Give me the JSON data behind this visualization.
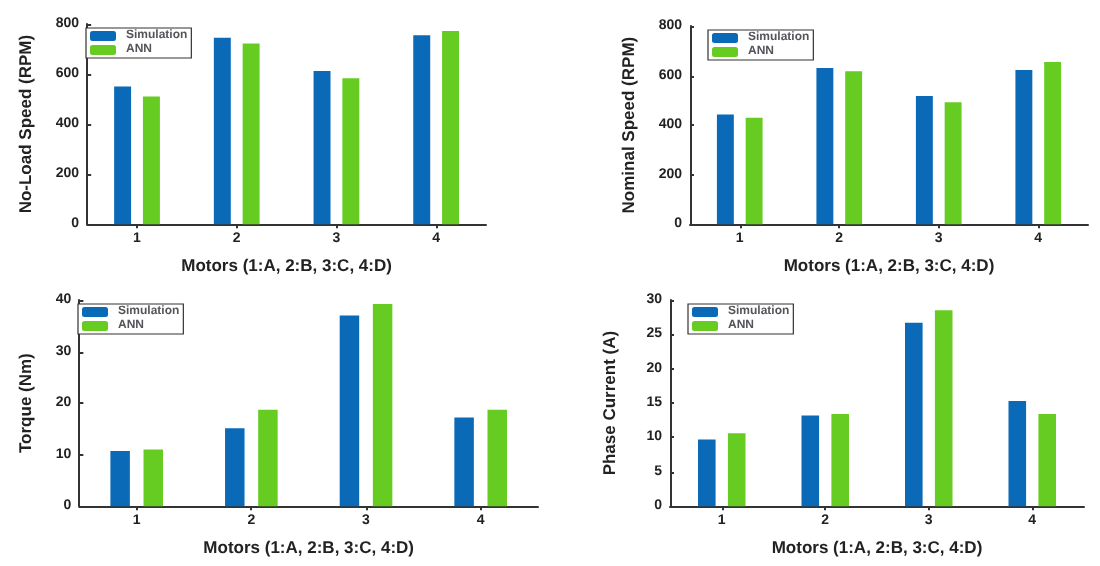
{
  "chart_data": [
    {
      "type": "bar",
      "categories": [
        "1",
        "2",
        "3",
        "4"
      ],
      "xlabel": "Motors (1:A, 2:B, 3:C, 4:D)",
      "ylabel": "No-Load Speed (RPM)",
      "ylim": [
        0,
        800
      ],
      "yticks": [
        0,
        200,
        400,
        600,
        800
      ],
      "legend": "top left",
      "series": [
        {
          "name": "Simulation",
          "color": "#0a6ab8",
          "values": [
            550,
            745,
            612,
            755
          ]
        },
        {
          "name": "ANN",
          "color": "#66cc22",
          "values": [
            510,
            722,
            583,
            772
          ]
        }
      ]
    },
    {
      "type": "bar",
      "categories": [
        "1",
        "2",
        "3",
        "4"
      ],
      "xlabel": "Motors (1:A, 2:B, 3:C, 4:D)",
      "ylabel": "Nominal Speed (RPM)",
      "ylim": [
        0,
        800
      ],
      "yticks": [
        0,
        200,
        400,
        600,
        800
      ],
      "legend": "top left",
      "series": [
        {
          "name": "Simulation",
          "color": "#0a6ab8",
          "values": [
            443,
            630,
            517,
            622
          ]
        },
        {
          "name": "ANN",
          "color": "#66cc22",
          "values": [
            430,
            617,
            492,
            655
          ]
        }
      ]
    },
    {
      "type": "bar",
      "categories": [
        "1",
        "2",
        "3",
        "4"
      ],
      "xlabel": "Motors (1:A, 2:B, 3:C, 4:D)",
      "ylabel": "Torque (Nm)",
      "ylim": [
        0,
        40
      ],
      "yticks": [
        0,
        10,
        20,
        30,
        40
      ],
      "legend": "top left",
      "series": [
        {
          "name": "Simulation",
          "color": "#0a6ab8",
          "values": [
            10.7,
            15.1,
            37,
            17.2
          ]
        },
        {
          "name": "ANN",
          "color": "#66cc22",
          "values": [
            11,
            18.7,
            39.2,
            18.7
          ]
        }
      ]
    },
    {
      "type": "bar",
      "categories": [
        "1",
        "2",
        "3",
        "4"
      ],
      "xlabel": "Motors (1:A, 2:B, 3:C, 4:D)",
      "ylabel": "Phase Current (A)",
      "ylim": [
        0,
        30
      ],
      "yticks": [
        0,
        5,
        10,
        15,
        20,
        25,
        30
      ],
      "legend": "top left",
      "series": [
        {
          "name": "Simulation",
          "color": "#0a6ab8",
          "values": [
            9.7,
            13.2,
            26.7,
            15.3
          ]
        },
        {
          "name": "ANN",
          "color": "#66cc22",
          "values": [
            10.6,
            13.4,
            28.5,
            13.4
          ]
        }
      ]
    }
  ]
}
